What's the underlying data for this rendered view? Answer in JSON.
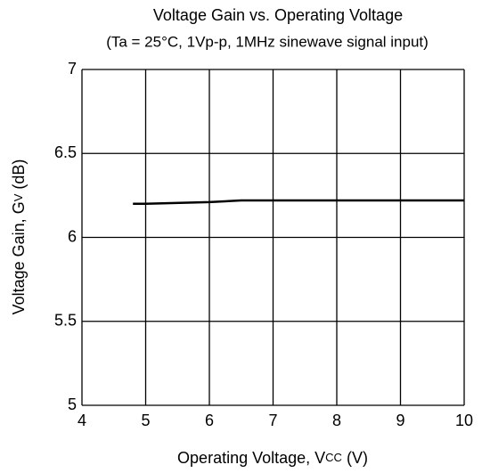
{
  "chart_data": {
    "type": "line",
    "title": "Voltage Gain vs. Operating Voltage",
    "subtitle": "(Ta = 25°C, 1Vp-p, 1MHz sinewave signal input)",
    "x_label": [
      "Operating Voltage, V",
      "CC",
      " (V)"
    ],
    "y_label": [
      "Voltage Gain, G",
      "V",
      " (dB)"
    ],
    "x": [
      4.8,
      5,
      6,
      6.5,
      7,
      8,
      9,
      10
    ],
    "series": [
      {
        "color": "#000000",
        "values": [
          6.2,
          6.2,
          6.21,
          6.22,
          6.22,
          6.22,
          6.22,
          6.22
        ]
      }
    ],
    "xlim": [
      4,
      10
    ],
    "xticks": [
      4,
      5,
      6,
      7,
      8,
      9,
      10
    ],
    "ylim": [
      5,
      7
    ],
    "yticks": [
      5,
      5.5,
      6,
      6.5,
      7
    ],
    "grid": true
  }
}
